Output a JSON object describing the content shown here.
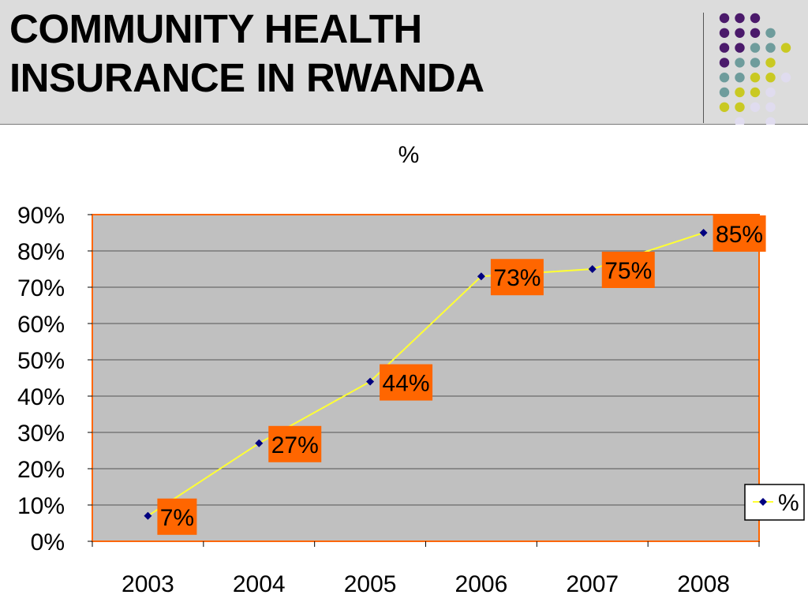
{
  "slide": {
    "title_line1": "COMMUNITY HEALTH",
    "title_line2": "INSURANCE IN RWANDA"
  },
  "decor": {
    "dot_colors": {
      "purple": "#4b1a6b",
      "teal": "#6e9c9c",
      "yellow": "#c9c922",
      "lavender": "#e0dcef"
    }
  },
  "chart_data": {
    "type": "line",
    "title": "%",
    "categories": [
      "2003",
      "2004",
      "2005",
      "2006",
      "2007",
      "2008"
    ],
    "series": [
      {
        "name": "%",
        "values": [
          7,
          27,
          44,
          73,
          75,
          85
        ],
        "labels": [
          "7%",
          "27%",
          "44%",
          "73%",
          "75%",
          "85%"
        ],
        "line_color": "#ffff33",
        "marker_color": "#000080"
      }
    ],
    "yticks": [
      "0%",
      "10%",
      "20%",
      "30%",
      "40%",
      "50%",
      "60%",
      "70%",
      "80%",
      "90%"
    ],
    "ylim": [
      0,
      90
    ],
    "grid": true,
    "legend": "right",
    "plot_background": "#c0c0c0",
    "plot_border_color": "#ff6600",
    "label_background": "#ff6600"
  }
}
